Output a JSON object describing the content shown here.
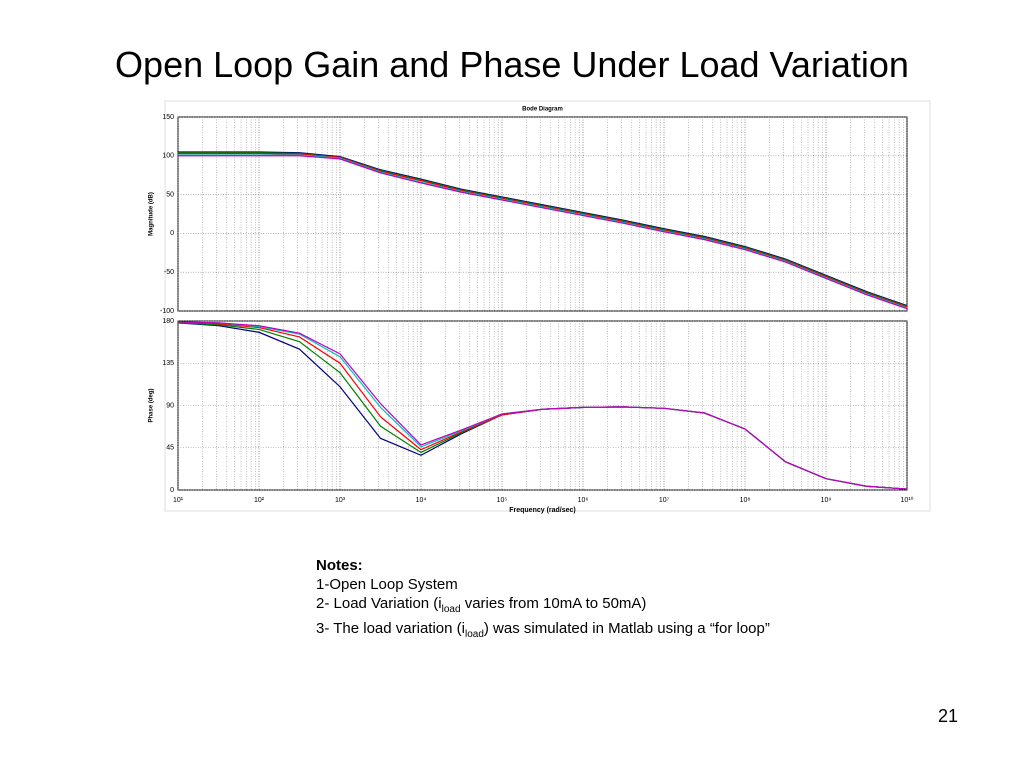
{
  "title": "Open Loop Gain and Phase Under Load Variation",
  "page_number": "21",
  "notes": {
    "heading": "Notes:",
    "lines": [
      [
        {
          "text": "1-Open Loop System"
        }
      ],
      [
        {
          "text": "2- Load Variation (i"
        },
        {
          "sub": "load"
        },
        {
          "text": " varies from 10mA to 50mA)"
        }
      ],
      [
        {
          "text": "3- The load variation (i"
        },
        {
          "sub": "load"
        },
        {
          "text": ") was simulated in Matlab using a “for loop”"
        }
      ]
    ]
  },
  "chart_data": [
    {
      "type": "line",
      "title": "Bode Diagram",
      "y_label": "Magnitude (dB)",
      "x_log": true,
      "grid": true,
      "minor_grid": true,
      "xlim": [
        10,
        10000000000
      ],
      "xticks": [
        10,
        100,
        1000,
        10000,
        100000,
        1000000,
        10000000,
        100000000,
        1000000000,
        10000000000
      ],
      "ylim": [
        -100,
        150
      ],
      "yticks": [
        -100,
        -50,
        0,
        50,
        100,
        150
      ],
      "x": [
        10,
        31.6,
        100,
        316,
        1000,
        3162,
        10000,
        31623,
        100000,
        316228,
        1000000,
        3162278,
        10000000,
        31622777,
        100000000,
        316227766,
        1000000000,
        3162277660,
        10000000000
      ],
      "series": [
        {
          "color": "#000080",
          "values": [
            105,
            105,
            105,
            104,
            99,
            82,
            70,
            57,
            47,
            37,
            27,
            17,
            6,
            -4,
            -17,
            -33,
            -54,
            -75,
            -93
          ]
        },
        {
          "color": "#008000",
          "values": [
            104,
            104,
            104,
            103,
            98,
            81,
            69,
            56,
            46,
            36,
            26,
            16,
            5,
            -5,
            -18,
            -34,
            -55,
            -76,
            -94
          ]
        },
        {
          "color": "#ff0000",
          "values": [
            103,
            103,
            103,
            102,
            98,
            80,
            68,
            55,
            45,
            35,
            25,
            15,
            4,
            -6,
            -19,
            -35,
            -56,
            -77,
            -95
          ]
        },
        {
          "color": "#00bfbf",
          "values": [
            101,
            101,
            101,
            101,
            97,
            79,
            66,
            54,
            44,
            34,
            24,
            14,
            3,
            -7,
            -20,
            -36,
            -57,
            -78,
            -96
          ]
        },
        {
          "color": "#bf00bf",
          "values": [
            100,
            100,
            100,
            100,
            96,
            78,
            65,
            53,
            43,
            33,
            23,
            13,
            2,
            -8,
            -21,
            -37,
            -58,
            -79,
            -97
          ]
        }
      ]
    },
    {
      "type": "line",
      "y_label": "Phase (deg)",
      "x_label": "Frequency (rad/sec)",
      "x_log": true,
      "grid": true,
      "minor_grid": true,
      "xlim": [
        10,
        10000000000
      ],
      "xticks": [
        {
          "value": 10,
          "label": "10¹"
        },
        {
          "value": 100,
          "label": "10²"
        },
        {
          "value": 1000,
          "label": "10³"
        },
        {
          "value": 10000,
          "label": "10⁴"
        },
        {
          "value": 100000,
          "label": "10⁵"
        },
        {
          "value": 1000000,
          "label": "10⁶"
        },
        {
          "value": 10000000,
          "label": "10⁷"
        },
        {
          "value": 100000000,
          "label": "10⁸"
        },
        {
          "value": 1000000000,
          "label": "10⁹"
        },
        {
          "value": 10000000000,
          "label": "10¹⁰"
        }
      ],
      "ylim": [
        0,
        180
      ],
      "yticks": [
        0,
        45,
        90,
        135,
        180
      ],
      "x": [
        10,
        31.6,
        100,
        316,
        1000,
        3162,
        10000,
        31623,
        100000,
        316228,
        1000000,
        3162278,
        10000000,
        31622777,
        100000000,
        316227766,
        1000000000,
        3162277660,
        10000000000
      ],
      "series": [
        {
          "color": "#000080",
          "values": [
            178,
            175,
            168,
            150,
            110,
            55,
            37,
            60,
            80,
            86,
            88,
            88.5,
            87,
            82,
            65,
            30,
            12,
            4,
            1
          ]
        },
        {
          "color": "#008000",
          "values": [
            178,
            176,
            171,
            158,
            125,
            68,
            40,
            61,
            80,
            86,
            88,
            88.5,
            87,
            82,
            65,
            30,
            12,
            4,
            1
          ]
        },
        {
          "color": "#ff0000",
          "values": [
            179,
            177,
            173,
            163,
            135,
            78,
            43,
            62,
            80,
            86,
            88,
            88.5,
            87,
            82,
            65,
            30,
            12,
            4,
            1
          ]
        },
        {
          "color": "#00bfbf",
          "values": [
            179,
            178,
            174,
            166,
            142,
            88,
            46,
            63,
            81,
            86,
            88,
            88.5,
            87,
            82,
            65,
            30,
            12,
            4,
            1
          ]
        },
        {
          "color": "#bf00bf",
          "values": [
            179,
            178,
            175,
            167,
            145,
            92,
            48,
            64,
            81,
            86,
            88,
            88.5,
            87,
            82,
            65,
            30,
            12,
            4,
            1
          ]
        }
      ]
    }
  ]
}
